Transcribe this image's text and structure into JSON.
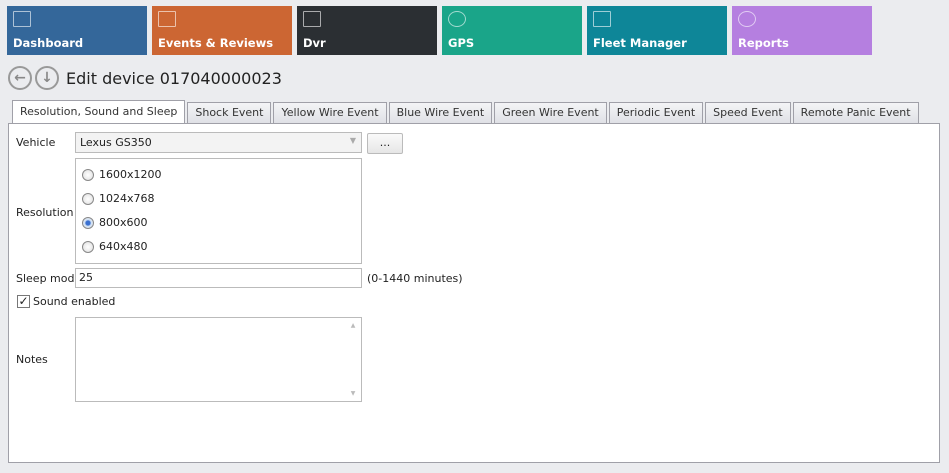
{
  "tiles": [
    {
      "label": "Dashboard",
      "color": "#34679a",
      "icon": "chart-icon"
    },
    {
      "label": "Events & Reviews",
      "color": "#cc6633",
      "icon": "clipboard-check-icon"
    },
    {
      "label": "Dvr",
      "color": "#2b2f33",
      "icon": "dvr-icon"
    },
    {
      "label": "GPS",
      "color": "#1aa589",
      "icon": "map-pin-icon"
    },
    {
      "label": "Fleet Manager",
      "color": "#0e8698",
      "icon": "cars-icon"
    },
    {
      "label": "Reports",
      "color": "#b57fe0",
      "icon": "pie-chart-icon"
    }
  ],
  "header": {
    "title": "Edit device 017040000023"
  },
  "tabs": [
    "Resolution, Sound and Sleep",
    "Shock Event",
    "Yellow Wire Event",
    "Blue Wire Event",
    "Green Wire Event",
    "Periodic Event",
    "Speed Event",
    "Remote Panic Event"
  ],
  "form": {
    "vehicle_label": "Vehicle",
    "vehicle_value": "Lexus GS350",
    "browse_label": "...",
    "resolution_label": "Resolution",
    "resolutions": [
      "1600x1200",
      "1024x768",
      "800x600",
      "640x480"
    ],
    "resolution_selected": "800x600",
    "sleep_label": "Sleep mode",
    "sleep_value": "25",
    "sleep_hint": "(0-1440 minutes)",
    "sound_label": "Sound enabled",
    "sound_checked": true,
    "notes_label": "Notes",
    "notes_value": ""
  }
}
